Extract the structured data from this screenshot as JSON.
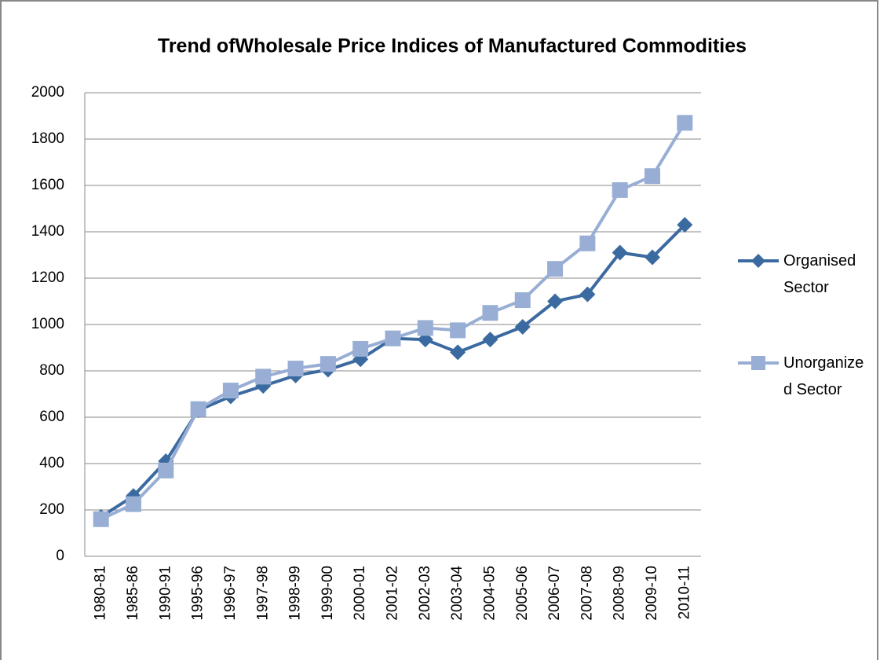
{
  "chart_data": {
    "type": "line",
    "title": "Trend ofWholesale Price Indices of Manufactured Commodities",
    "categories": [
      "1980-81",
      "1985-86",
      "1990-91",
      "1995-96",
      "1996-97",
      "1997-98",
      "1998-99",
      "1999-00",
      "2000-01",
      "2001-02",
      "2002-03",
      "2003-04",
      "2004-05",
      "2005-06",
      "2006-07",
      "2007-08",
      "2008-09",
      "2009-10",
      "2010-11"
    ],
    "series": [
      {
        "name": "Organised Sector",
        "color": "#3b6aa0",
        "marker": "diamond",
        "values": [
          170,
          260,
          410,
          630,
          690,
          735,
          780,
          805,
          850,
          940,
          935,
          880,
          935,
          990,
          1100,
          1130,
          1310,
          1290,
          1430
        ]
      },
      {
        "name": "Unorganized Sector",
        "color": "#98aed4",
        "marker": "square",
        "values": [
          160,
          225,
          370,
          635,
          715,
          775,
          810,
          830,
          895,
          940,
          985,
          975,
          1050,
          1105,
          1240,
          1350,
          1580,
          1640,
          1870
        ]
      }
    ],
    "ylim": [
      0,
      2000
    ],
    "yticks": [
      0,
      200,
      400,
      600,
      800,
      1000,
      1200,
      1400,
      1600,
      1800,
      2000
    ],
    "grid": true,
    "legend": "right"
  }
}
